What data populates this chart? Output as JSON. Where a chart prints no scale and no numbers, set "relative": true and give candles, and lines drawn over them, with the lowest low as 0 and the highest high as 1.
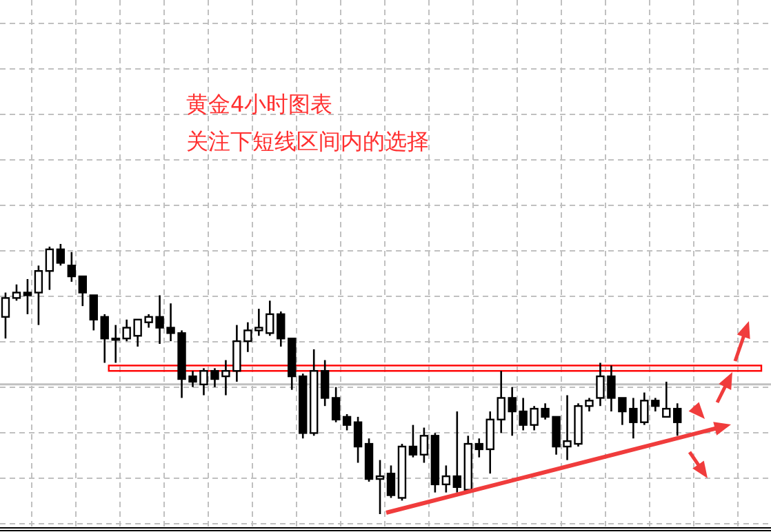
{
  "chart_data": {
    "type": "candlestick",
    "title": "黄金4小时图表",
    "subtitle": "关注下短线区间内的选择",
    "relative": true,
    "grid": true,
    "categories": [
      null,
      null,
      null,
      null,
      null,
      null,
      null,
      null,
      null,
      null,
      null,
      null,
      null,
      null,
      null,
      null,
      null,
      null,
      null,
      null,
      null,
      null,
      null,
      null,
      null,
      null,
      null,
      null,
      null,
      null,
      null,
      null,
      null,
      null,
      null,
      null,
      null,
      null,
      null,
      null,
      null,
      null,
      null,
      null,
      null,
      null,
      null,
      null,
      null,
      null,
      null,
      null,
      null,
      null,
      null,
      null,
      null,
      null,
      null,
      null,
      null,
      null,
      null,
      null,
      null,
      null,
      null,
      null,
      null,
      null
    ],
    "ohlc": [
      [
        0.73,
        0.82,
        0.65,
        0.8
      ],
      [
        0.8,
        0.85,
        0.79,
        0.82
      ],
      [
        0.82,
        0.87,
        0.74,
        0.81
      ],
      [
        0.82,
        0.92,
        0.7,
        0.9
      ],
      [
        0.9,
        0.99,
        0.83,
        0.98
      ],
      [
        0.98,
        1,
        0.92,
        0.93
      ],
      [
        0.92,
        0.97,
        0.86,
        0.88
      ],
      [
        0.88,
        0.88,
        0.77,
        0.82
      ],
      [
        0.81,
        0.81,
        0.68,
        0.72
      ],
      [
        0.73,
        0.74,
        0.56,
        0.65
      ],
      [
        0.65,
        0.7,
        0.56,
        0.65
      ],
      [
        0.65,
        0.72,
        0.64,
        0.69
      ],
      [
        0.66,
        0.72,
        0.62,
        0.72
      ],
      [
        0.71,
        0.74,
        0.69,
        0.73
      ],
      [
        0.73,
        0.81,
        0.63,
        0.69
      ],
      [
        0.69,
        0.78,
        0.64,
        0.67
      ],
      [
        0.67,
        0.68,
        0.43,
        0.5
      ],
      [
        0.51,
        0.53,
        0.47,
        0.49
      ],
      [
        0.48,
        0.54,
        0.44,
        0.53
      ],
      [
        0.53,
        0.54,
        0.47,
        0.5
      ],
      [
        0.51,
        0.57,
        0.44,
        0.53
      ],
      [
        0.53,
        0.7,
        0.49,
        0.64
      ],
      [
        0.64,
        0.71,
        0.6,
        0.68
      ],
      [
        0.68,
        0.76,
        0.66,
        0.69
      ],
      [
        0.67,
        0.79,
        0.66,
        0.74
      ],
      [
        0.74,
        0.75,
        0.62,
        0.65
      ],
      [
        0.65,
        0.65,
        0.46,
        0.51
      ],
      [
        0.51,
        0.52,
        0.28,
        0.3
      ],
      [
        0.3,
        0.61,
        0.29,
        0.53
      ],
      [
        0.53,
        0.57,
        0.4,
        0.43
      ],
      [
        0.43,
        0.47,
        0.34,
        0.35
      ],
      [
        0.36,
        0.37,
        0.31,
        0.33
      ],
      [
        0.34,
        0.36,
        0.19,
        0.25
      ],
      [
        0.26,
        0.28,
        0.12,
        0.13
      ],
      [
        0.13,
        0.2,
        0,
        0.14
      ],
      [
        0.15,
        0.18,
        0.06,
        0.07
      ],
      [
        0.06,
        0.26,
        0.05,
        0.25
      ],
      [
        0.25,
        0.33,
        0.21,
        0.22
      ],
      [
        0.22,
        0.32,
        0.19,
        0.29
      ],
      [
        0.29,
        0.3,
        0.08,
        0.11
      ],
      [
        0.11,
        0.18,
        0.08,
        0.14
      ],
      [
        0.14,
        0.38,
        0.08,
        0.1
      ],
      [
        0.09,
        0.29,
        0.08,
        0.26
      ],
      [
        0.26,
        0.28,
        0.21,
        0.24
      ],
      [
        0.24,
        0.38,
        0.15,
        0.35
      ],
      [
        0.35,
        0.53,
        0.3,
        0.43
      ],
      [
        0.43,
        0.47,
        0.29,
        0.38
      ],
      [
        0.38,
        0.43,
        0.31,
        0.33
      ],
      [
        0.33,
        0.4,
        0.31,
        0.39
      ],
      [
        0.39,
        0.41,
        0.35,
        0.36
      ],
      [
        0.36,
        0.36,
        0.22,
        0.25
      ],
      [
        0.25,
        0.44,
        0.2,
        0.27
      ],
      [
        0.26,
        0.41,
        0.25,
        0.4
      ],
      [
        0.4,
        0.43,
        0.38,
        0.42
      ],
      [
        0.43,
        0.56,
        0.4,
        0.51
      ],
      [
        0.51,
        0.55,
        0.38,
        0.43
      ],
      [
        0.43,
        0.43,
        0.33,
        0.38
      ],
      [
        0.39,
        0.43,
        0.28,
        0.34
      ],
      [
        0.34,
        0.45,
        0.33,
        0.42
      ],
      [
        0.42,
        0.43,
        0.38,
        0.4
      ],
      [
        0.36,
        0.49,
        0.36,
        0.39
      ],
      [
        0.39,
        0.41,
        0.29,
        0.34
      ],
      null,
      null,
      null,
      null,
      null,
      null,
      null,
      null
    ],
    "bands": [
      {
        "axis": "y",
        "from": 0.53,
        "to": 0.55,
        "color": "#ff0000"
      }
    ],
    "ref_lines": [
      {
        "axis": "y",
        "value": 0.48,
        "color": "#c0c0c0"
      }
    ]
  }
}
